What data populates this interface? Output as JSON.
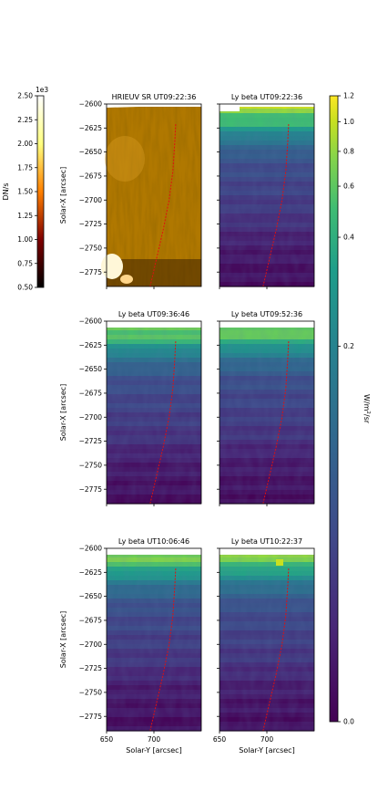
{
  "chart_data": {
    "type": "heatmap",
    "colorbars": [
      {
        "label": "DN/s",
        "exponent": "1e3",
        "colormap": "afmhot-like (black → orange → white)",
        "range": [
          0.5,
          2.5
        ],
        "tick_labels": [
          "0.50",
          "0.75",
          "1.00",
          "1.25",
          "1.50",
          "1.75",
          "2.00",
          "2.25",
          "2.50"
        ],
        "tick_values": [
          0.5,
          0.75,
          1.0,
          1.25,
          1.5,
          1.75,
          2.0,
          2.25,
          2.5
        ]
      },
      {
        "label": "W/m²/sr",
        "label_parts": [
          "W/m",
          "2",
          "/sr"
        ],
        "colormap": "viridis",
        "scale": "power-law stretch",
        "range": [
          0.0,
          1.2
        ],
        "tick_labels": [
          "0.0",
          "0.2",
          "0.4",
          "0.6",
          "0.8",
          "1.0",
          "1.2"
        ],
        "tick_values": [
          0.0,
          0.2,
          0.4,
          0.6,
          0.8,
          1.0,
          1.2
        ],
        "tick_fraction_position": [
          0.0,
          0.6,
          0.774,
          0.8556,
          0.9112,
          0.9587,
          1.0
        ]
      }
    ],
    "xlabel": "Solar-Y [arcsec]",
    "ylabel": "Solar-X [arcsec]",
    "xlim": [
      650,
      750
    ],
    "ylim": [
      -2600,
      -2790
    ],
    "x_tick_labels": [
      "650",
      "700"
    ],
    "x_tick_values": [
      650,
      700
    ],
    "y_tick_labels": [
      "−2775",
      "−2750",
      "−2725",
      "−2700",
      "−2675",
      "−2650",
      "−2625",
      "−2600"
    ],
    "y_tick_values": [
      -2775,
      -2750,
      -2725,
      -2700,
      -2675,
      -2650,
      -2625,
      -2600
    ],
    "panels": [
      {
        "title": "HRIEUV SR UT09:22:36",
        "image": "hrieuv"
      },
      {
        "title": "Ly beta UT09:22:36",
        "image": "lyb"
      },
      {
        "title": "Ly beta UT09:36:46",
        "image": "lyb"
      },
      {
        "title": "Ly beta UT09:52:36",
        "image": "lyb"
      },
      {
        "title": "Ly beta UT10:06:46",
        "image": "lyb"
      },
      {
        "title": "Ly beta UT10:22:37",
        "image": "lyb"
      }
    ],
    "overlay_path": {
      "style": "red dashed",
      "points": [
        [
          696,
          -2790
        ],
        [
          703,
          -2760
        ],
        [
          710,
          -2730
        ],
        [
          716,
          -2700
        ],
        [
          720,
          -2670
        ],
        [
          722,
          -2640
        ],
        [
          723,
          -2620
        ]
      ]
    },
    "lyb_intensity_profile": {
      "solar_x": [
        -2780,
        -2760,
        -2740,
        -2720,
        -2700,
        -2680,
        -2660,
        -2640,
        -2620,
        -2600
      ],
      "value": [
        0.05,
        0.08,
        0.12,
        0.2,
        0.24,
        0.28,
        0.33,
        0.5,
        0.8,
        0.95
      ]
    }
  }
}
